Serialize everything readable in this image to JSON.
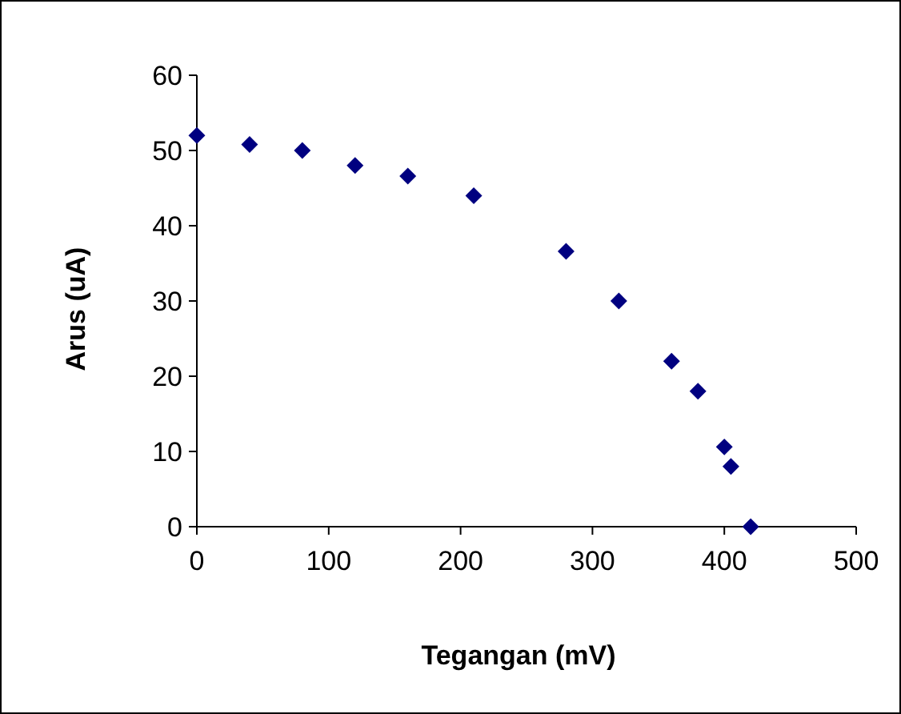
{
  "chart_data": {
    "type": "scatter",
    "xlabel": "Tegangan (mV)",
    "ylabel": "Arus (uA)",
    "x": [
      0,
      40,
      80,
      120,
      160,
      210,
      280,
      320,
      360,
      380,
      400,
      405,
      420
    ],
    "series": [
      {
        "color": "#000080",
        "values": [
          52,
          50.8,
          50,
          48,
          46.6,
          44,
          36.6,
          30,
          22,
          18,
          10.6,
          8,
          0
        ]
      }
    ],
    "xlim": [
      0,
      500
    ],
    "xticks": [
      0,
      100,
      200,
      300,
      400,
      500
    ],
    "ylim": [
      0,
      60
    ],
    "yticks": [
      0,
      10,
      20,
      30,
      40,
      50,
      60
    ],
    "marker": "diamond"
  }
}
